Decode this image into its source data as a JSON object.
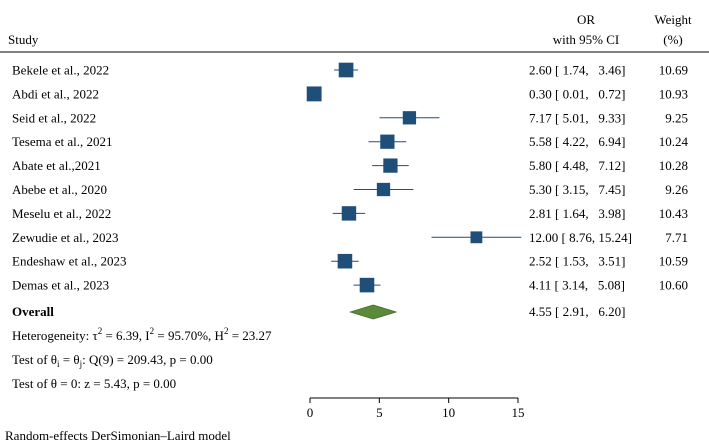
{
  "chart_data": {
    "type": "forest",
    "headers": {
      "study": "Study",
      "or_line1": "OR",
      "or_line2": "with 95% CI",
      "weight_line1": "Weight",
      "weight_line2": "(%)"
    },
    "studies": [
      {
        "label": "Bekele et al., 2022",
        "or": 2.6,
        "lower": 1.74,
        "upper": 3.46,
        "or_text": "2.60 [ 1.74,   3.46]",
        "weight": 10.69,
        "weight_text": "10.69"
      },
      {
        "label": "Abdi et al., 2022",
        "or": 0.3,
        "lower": 0.01,
        "upper": 0.72,
        "or_text": "0.30 [ 0.01,   0.72]",
        "weight": 10.93,
        "weight_text": "10.93"
      },
      {
        "label": "Seid et al., 2022",
        "or": 7.17,
        "lower": 5.01,
        "upper": 9.33,
        "or_text": "7.17 [ 5.01,   9.33]",
        "weight": 9.25,
        "weight_text": "9.25"
      },
      {
        "label": "Tesema et al., 2021",
        "or": 5.58,
        "lower": 4.22,
        "upper": 6.94,
        "or_text": "5.58 [ 4.22,   6.94]",
        "weight": 10.24,
        "weight_text": "10.24"
      },
      {
        "label": "Abate et al.,2021",
        "or": 5.8,
        "lower": 4.48,
        "upper": 7.12,
        "or_text": "5.80 [ 4.48,   7.12]",
        "weight": 10.28,
        "weight_text": "10.28"
      },
      {
        "label": "Abebe et al., 2020",
        "or": 5.3,
        "lower": 3.15,
        "upper": 7.45,
        "or_text": "5.30 [ 3.15,   7.45]",
        "weight": 9.26,
        "weight_text": "9.26"
      },
      {
        "label": "Meselu et al., 2022",
        "or": 2.81,
        "lower": 1.64,
        "upper": 3.98,
        "or_text": "2.81 [ 1.64,   3.98]",
        "weight": 10.43,
        "weight_text": "10.43"
      },
      {
        "label": "Zewudie et al., 2023",
        "or": 12.0,
        "lower": 8.76,
        "upper": 15.24,
        "or_text": "12.00 [ 8.76, 15.24]",
        "weight": 7.71,
        "weight_text": "7.71"
      },
      {
        "label": "Endeshaw et al., 2023",
        "or": 2.52,
        "lower": 1.53,
        "upper": 3.51,
        "or_text": "2.52 [ 1.53,   3.51]",
        "weight": 10.59,
        "weight_text": "10.59"
      },
      {
        "label": "Demas et al., 2023",
        "or": 4.11,
        "lower": 3.14,
        "upper": 5.08,
        "or_text": "4.11 [ 3.14,   5.08]",
        "weight": 10.6,
        "weight_text": "10.60"
      }
    ],
    "overall": {
      "label": "Overall",
      "or": 4.55,
      "lower": 2.91,
      "upper": 6.2,
      "or_text": "4.55 [ 2.91,   6.20]"
    },
    "stats": {
      "heterogeneity": {
        "prefix": "Heterogeneity: τ",
        "tau_sup": "2",
        "mid1": " = 6.39, I",
        "i_sup": "2",
        "mid2": " = 95.70%, H",
        "h_sup": "2",
        "tail": " = 23.27"
      },
      "test_equal": {
        "prefix": "Test of θ",
        "sub_i": "i",
        "eq": " = θ",
        "sub_j": "j",
        "tail": ": Q(9) = 209.43, p = 0.00"
      },
      "test_zero": "Test of θ = 0: z = 5.43, p = 0.00"
    },
    "xaxis": {
      "min": 0,
      "max": 15,
      "ticks": [
        0,
        5,
        10,
        15
      ],
      "tick_labels": [
        "0",
        "5",
        "10",
        "15"
      ]
    },
    "footnote": "Random-effects DerSimonian–Laird model",
    "colors": {
      "marker": "#1f4e79",
      "diamond": "#5b8a3a",
      "diamond_stroke": "#3f6a25",
      "text": "#1a1a1a",
      "axis": "#000000"
    }
  }
}
